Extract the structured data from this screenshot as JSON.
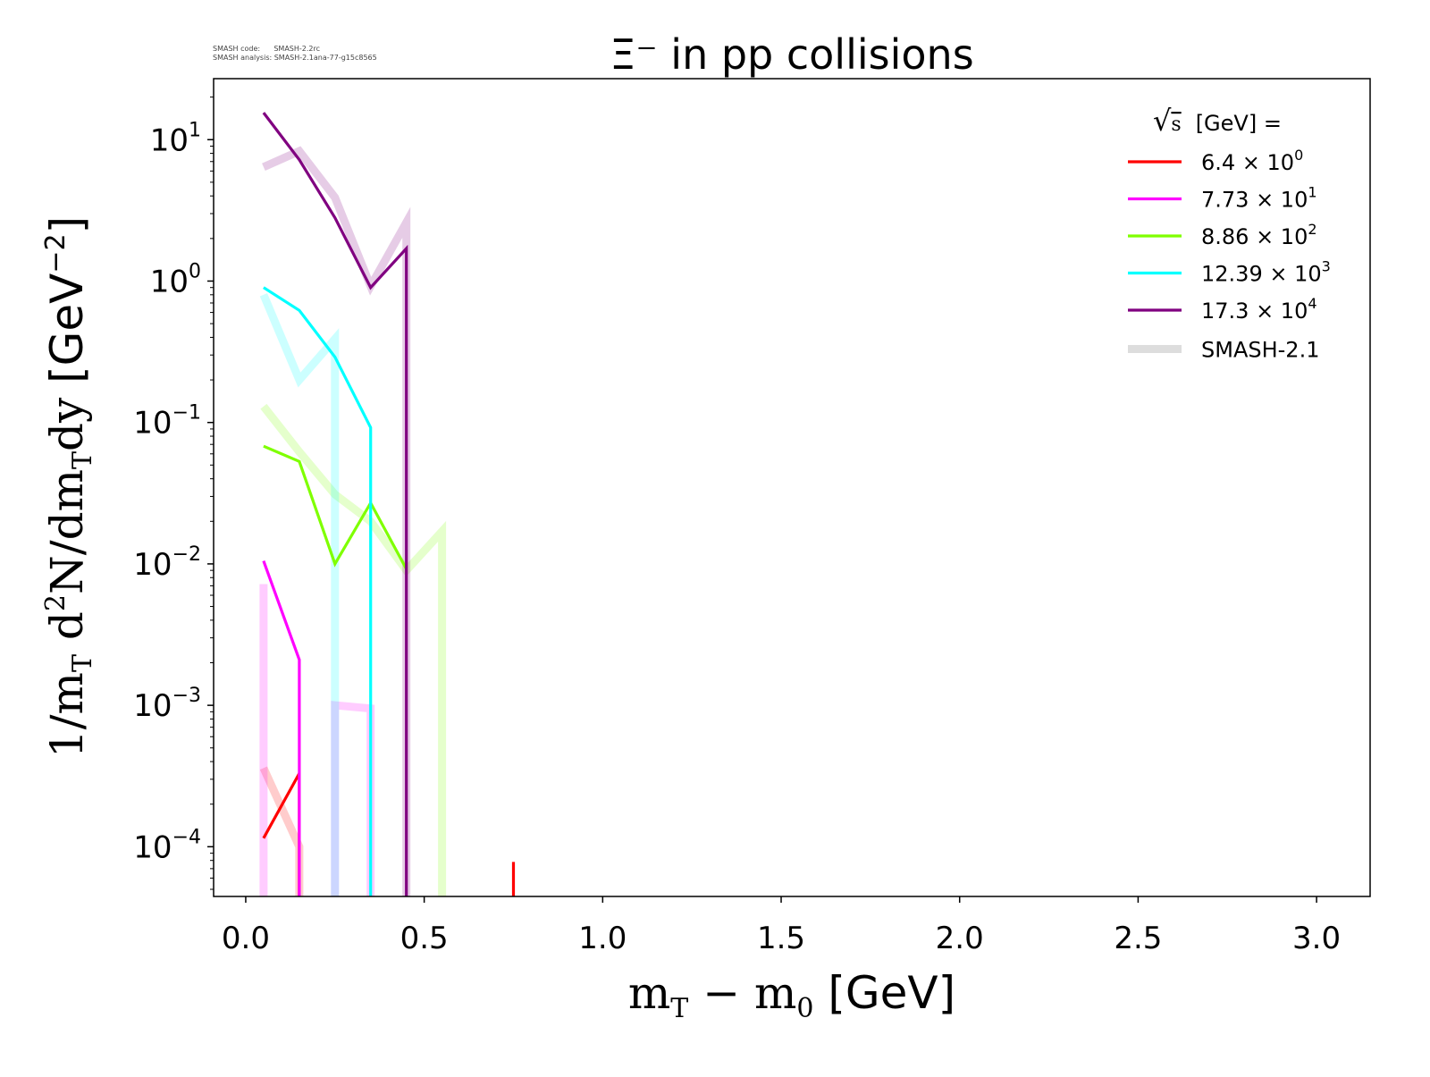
{
  "meta": {
    "code_line": "SMASH code:      SMASH-2.2rc",
    "analysis_line": "SMASH analysis: SMASH-2.1ana-77-g15c8565"
  },
  "chart_data": {
    "type": "line",
    "title": "Ξ⁻ in pp collisions",
    "xlabel": "m_T − m_0 [GeV]",
    "ylabel": "1/m_T d²N/dm_T dy [GeV⁻²]",
    "xlim": [
      -0.09,
      3.15
    ],
    "ylim": [
      4.45e-05,
      27
    ],
    "yscale": "log",
    "grid": false,
    "legend_position": "top-right",
    "legend_title": "√s [GeV] =",
    "xticks": [
      {
        "value": 0.0,
        "label": "0.0"
      },
      {
        "value": 0.5,
        "label": "0.5"
      },
      {
        "value": 1.0,
        "label": "1.0"
      },
      {
        "value": 1.5,
        "label": "1.5"
      },
      {
        "value": 2.0,
        "label": "2.0"
      },
      {
        "value": 2.5,
        "label": "2.5"
      },
      {
        "value": 3.0,
        "label": "3.0"
      }
    ],
    "yticks": [
      {
        "value": 0.0001,
        "base": "10",
        "exp": "−4"
      },
      {
        "value": 0.001,
        "base": "10",
        "exp": "−3"
      },
      {
        "value": 0.01,
        "base": "10",
        "exp": "−2"
      },
      {
        "value": 0.1,
        "base": "10",
        "exp": "−1"
      },
      {
        "value": 1,
        "base": "10",
        "exp": "0"
      },
      {
        "value": 10,
        "base": "10",
        "exp": "1"
      }
    ],
    "series": [
      {
        "name": "6.4",
        "legend_mult": "10",
        "legend_exp": "0",
        "color": "#ff0000",
        "x": [
          0.05,
          0.15,
          0.15,
          0.75,
          0.75
        ],
        "y": [
          0.000115,
          0.00033,
          1e-06,
          1e-06,
          7.8e-05
        ]
      },
      {
        "name": "7.73",
        "legend_mult": "10",
        "legend_exp": "1",
        "color": "#ff00ff",
        "x": [
          0.05,
          0.15,
          0.15
        ],
        "y": [
          0.0105,
          0.0021,
          1e-06
        ]
      },
      {
        "name": "8.86",
        "legend_mult": "10",
        "legend_exp": "2",
        "color": "#7fff00",
        "x": [
          0.05,
          0.15,
          0.25,
          0.35,
          0.45
        ],
        "y": [
          0.068,
          0.053,
          0.01,
          0.027,
          0.0092
        ]
      },
      {
        "name": "12.39",
        "legend_mult": "10",
        "legend_exp": "3",
        "color": "#00ffff",
        "x": [
          0.05,
          0.15,
          0.25,
          0.35,
          0.35
        ],
        "y": [
          0.9,
          0.62,
          0.29,
          0.092,
          1e-06
        ]
      },
      {
        "name": "17.3",
        "legend_mult": "10",
        "legend_exp": "4",
        "color": "#800080",
        "x": [
          0.05,
          0.15,
          0.25,
          0.35,
          0.45,
          0.45
        ],
        "y": [
          15.5,
          7.2,
          2.8,
          0.9,
          1.7,
          1e-06
        ]
      }
    ],
    "reference_name": "SMASH-2.1",
    "reference_series": [
      {
        "color": "#ff0000",
        "x": [
          0.05,
          0.15,
          0.15
        ],
        "y": [
          0.00036,
          0.0001,
          1e-06
        ]
      },
      {
        "color": "#ff00ff",
        "x": [
          0.05,
          0.05,
          0.05,
          0.15,
          0.15,
          0.25,
          0.25,
          0.35,
          0.35
        ],
        "y": [
          0.0072,
          1e-06,
          1e-06,
          1e-06,
          1e-06,
          1e-06,
          0.001,
          0.00095,
          1e-06
        ]
      },
      {
        "color": "#7fff00",
        "x": [
          0.05,
          0.15,
          0.25,
          0.35,
          0.45,
          0.55,
          0.55
        ],
        "y": [
          0.13,
          0.062,
          0.031,
          0.02,
          0.009,
          0.017,
          1e-06
        ]
      },
      {
        "color": "#00ffff",
        "x": [
          0.05,
          0.15,
          0.25,
          0.25
        ],
        "y": [
          0.8,
          0.2,
          0.39,
          1e-06
        ]
      },
      {
        "color": "#800080",
        "x": [
          0.05,
          0.15,
          0.25,
          0.35,
          0.45,
          0.45
        ],
        "y": [
          6.4,
          8.3,
          3.9,
          0.92,
          2.6,
          1e-06
        ]
      }
    ]
  }
}
